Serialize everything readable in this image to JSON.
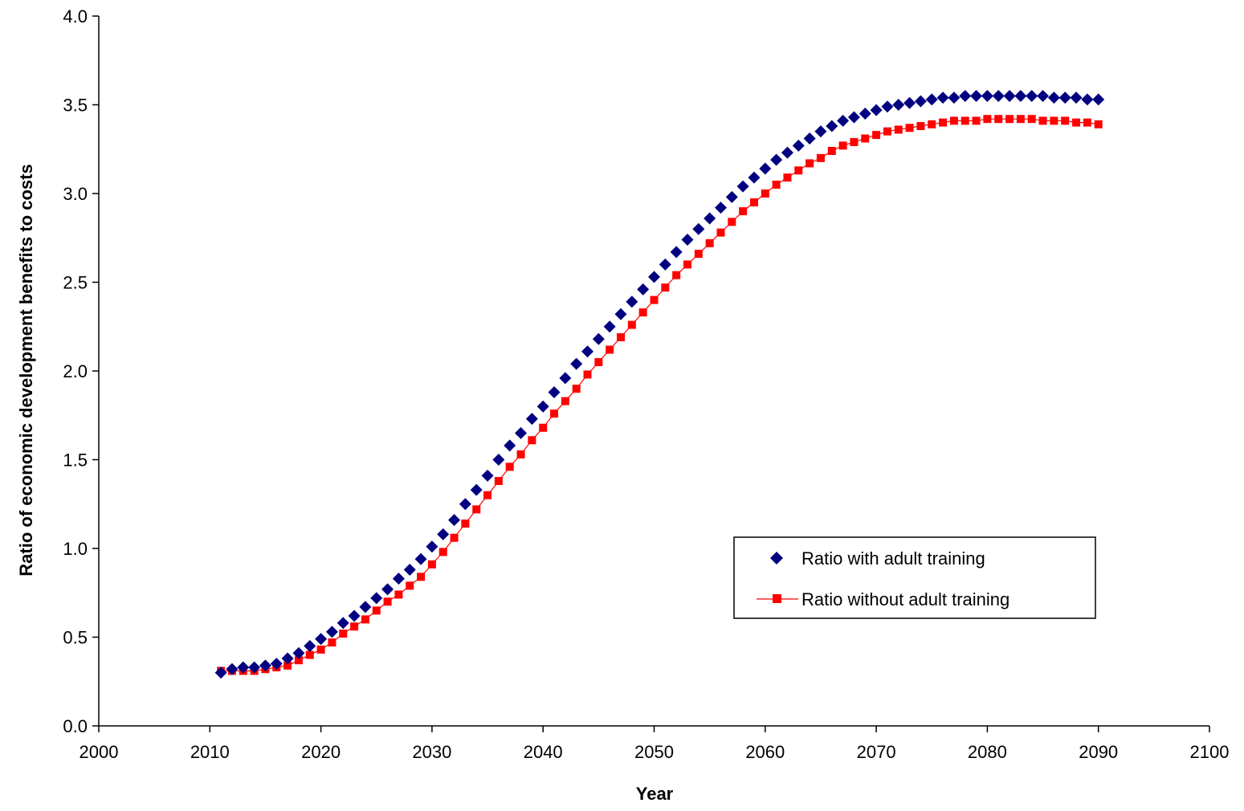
{
  "chart_data": {
    "type": "line",
    "title": "",
    "xlabel": "Year",
    "ylabel": "Ratio of economic development benefits to costs",
    "xlim": [
      2000,
      2100
    ],
    "ylim": [
      0,
      4.0
    ],
    "xticks": [
      "2000",
      "2010",
      "2020",
      "2030",
      "2040",
      "2050",
      "2060",
      "2070",
      "2080",
      "2090",
      "2100"
    ],
    "yticks": [
      "0.0",
      "0.5",
      "1.0",
      "1.5",
      "2.0",
      "2.5",
      "3.0",
      "3.5",
      "4.0"
    ],
    "grid": false,
    "legend_position": "center-right",
    "x": [
      2011,
      2012,
      2013,
      2014,
      2015,
      2016,
      2017,
      2018,
      2019,
      2020,
      2021,
      2022,
      2023,
      2024,
      2025,
      2026,
      2027,
      2028,
      2029,
      2030,
      2031,
      2032,
      2033,
      2034,
      2035,
      2036,
      2037,
      2038,
      2039,
      2040,
      2041,
      2042,
      2043,
      2044,
      2045,
      2046,
      2047,
      2048,
      2049,
      2050,
      2051,
      2052,
      2053,
      2054,
      2055,
      2056,
      2057,
      2058,
      2059,
      2060,
      2061,
      2062,
      2063,
      2064,
      2065,
      2066,
      2067,
      2068,
      2069,
      2070,
      2071,
      2072,
      2073,
      2074,
      2075,
      2076,
      2077,
      2078,
      2079,
      2080,
      2081,
      2082,
      2083,
      2084,
      2085,
      2086,
      2087,
      2088,
      2089,
      2090
    ],
    "series": [
      {
        "name": "Ratio with adult training",
        "color": "#000080",
        "marker": "diamond",
        "line": false,
        "values": [
          0.3,
          0.32,
          0.33,
          0.33,
          0.34,
          0.35,
          0.38,
          0.41,
          0.45,
          0.49,
          0.53,
          0.58,
          0.62,
          0.67,
          0.72,
          0.77,
          0.83,
          0.88,
          0.94,
          1.01,
          1.08,
          1.16,
          1.25,
          1.33,
          1.41,
          1.5,
          1.58,
          1.65,
          1.73,
          1.8,
          1.88,
          1.96,
          2.04,
          2.11,
          2.18,
          2.25,
          2.32,
          2.39,
          2.46,
          2.53,
          2.6,
          2.67,
          2.74,
          2.8,
          2.86,
          2.92,
          2.98,
          3.04,
          3.09,
          3.14,
          3.19,
          3.23,
          3.27,
          3.31,
          3.35,
          3.38,
          3.41,
          3.43,
          3.45,
          3.47,
          3.49,
          3.5,
          3.51,
          3.52,
          3.53,
          3.54,
          3.54,
          3.55,
          3.55,
          3.55,
          3.55,
          3.55,
          3.55,
          3.55,
          3.55,
          3.54,
          3.54,
          3.54,
          3.53,
          3.53
        ]
      },
      {
        "name": "Ratio without adult training",
        "color": "#ff0000",
        "marker": "square",
        "line": true,
        "values": [
          0.31,
          0.31,
          0.31,
          0.31,
          0.32,
          0.33,
          0.34,
          0.37,
          0.4,
          0.43,
          0.47,
          0.52,
          0.56,
          0.6,
          0.65,
          0.7,
          0.74,
          0.79,
          0.84,
          0.91,
          0.98,
          1.06,
          1.14,
          1.22,
          1.3,
          1.38,
          1.46,
          1.53,
          1.61,
          1.68,
          1.76,
          1.83,
          1.9,
          1.98,
          2.05,
          2.12,
          2.19,
          2.26,
          2.33,
          2.4,
          2.47,
          2.54,
          2.6,
          2.66,
          2.72,
          2.78,
          2.84,
          2.9,
          2.95,
          3.0,
          3.05,
          3.09,
          3.13,
          3.17,
          3.2,
          3.24,
          3.27,
          3.29,
          3.31,
          3.33,
          3.35,
          3.36,
          3.37,
          3.38,
          3.39,
          3.4,
          3.41,
          3.41,
          3.41,
          3.42,
          3.42,
          3.42,
          3.42,
          3.42,
          3.41,
          3.41,
          3.41,
          3.4,
          3.4,
          3.39
        ]
      }
    ]
  }
}
